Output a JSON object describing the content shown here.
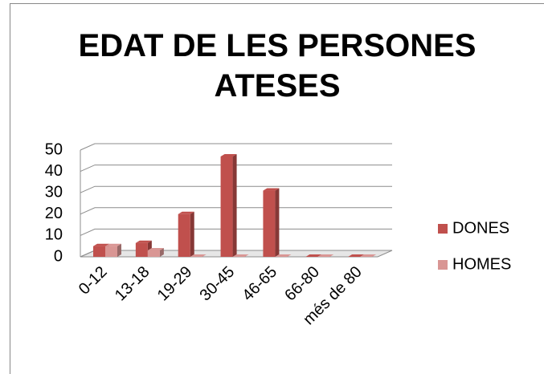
{
  "chart_data": {
    "type": "bar",
    "title": "EDAT DE LES PERSONES ATESES",
    "categories": [
      "0-12",
      "13-18",
      "19-29",
      "30-45",
      "46-65",
      "66-80",
      "més de 80"
    ],
    "series": [
      {
        "name": "DONES",
        "color": "#c0504d",
        "values": [
          5,
          6.5,
          20,
          47,
          31,
          0,
          0
        ]
      },
      {
        "name": "HOMES",
        "color": "#d99694",
        "values": [
          5,
          3,
          0,
          0,
          0,
          0,
          0
        ]
      }
    ],
    "ylim": [
      0,
      50
    ],
    "yticks": [
      0,
      10,
      20,
      30,
      40,
      50
    ],
    "grid": true,
    "legend": "right"
  }
}
